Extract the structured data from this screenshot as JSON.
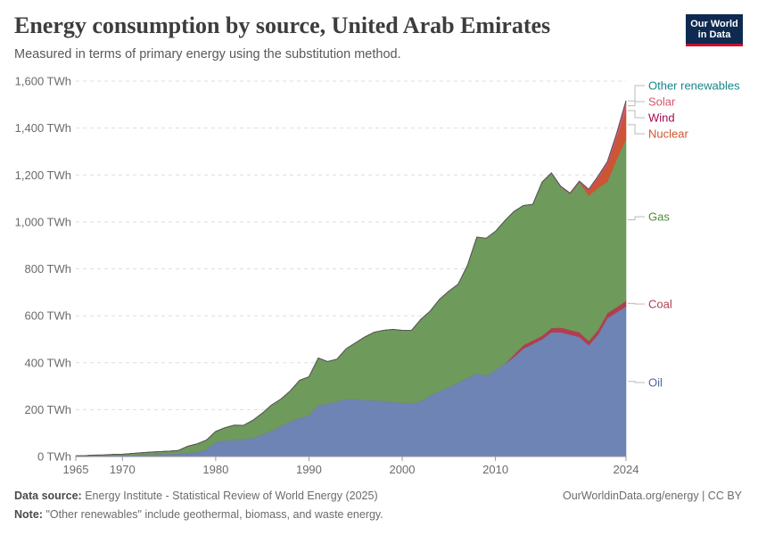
{
  "header": {
    "title": "Energy consumption by source, United Arab Emirates",
    "subtitle": "Measured in terms of primary energy using the substitution method."
  },
  "logo": {
    "line1": "Our World",
    "line2": "in Data",
    "bg_color": "#0e2a50",
    "accent_color": "#c8102e"
  },
  "footer": {
    "source_label": "Data source:",
    "source_text": "Energy Institute - Statistical Review of World Energy (2025)",
    "credit": "OurWorldinData.org/energy | CC BY",
    "note_label": "Note:",
    "note_text": "\"Other renewables\" include geothermal, biomass, and waste energy."
  },
  "chart_data": {
    "type": "area",
    "stacked": true,
    "x": [
      1965,
      1966,
      1967,
      1968,
      1969,
      1970,
      1971,
      1972,
      1973,
      1974,
      1975,
      1976,
      1977,
      1978,
      1979,
      1980,
      1981,
      1982,
      1983,
      1984,
      1985,
      1986,
      1987,
      1988,
      1989,
      1990,
      1991,
      1992,
      1993,
      1994,
      1995,
      1996,
      1997,
      1998,
      1999,
      2000,
      2001,
      2002,
      2003,
      2004,
      2005,
      2006,
      2007,
      2008,
      2009,
      2010,
      2011,
      2012,
      2013,
      2014,
      2015,
      2016,
      2017,
      2018,
      2019,
      2020,
      2021,
      2022,
      2023,
      2024
    ],
    "series": [
      {
        "name": "Oil",
        "color": "#6d84b4",
        "values": [
          2,
          3,
          4,
          4,
          5,
          6,
          7,
          8,
          9,
          10,
          11,
          12,
          16,
          20,
          30,
          62,
          68,
          72,
          73,
          80,
          95,
          110,
          130,
          150,
          165,
          175,
          220,
          225,
          235,
          245,
          245,
          240,
          240,
          238,
          232,
          230,
          228,
          235,
          260,
          280,
          295,
          315,
          335,
          355,
          345,
          370,
          395,
          425,
          460,
          480,
          500,
          530,
          530,
          520,
          510,
          475,
          520,
          590,
          615,
          640
        ]
      },
      {
        "name": "Coal",
        "color": "#b13e4e",
        "values": [
          0,
          0,
          0,
          0,
          0,
          0,
          0,
          0,
          0,
          0,
          0,
          0,
          0,
          0,
          0,
          0,
          0,
          0,
          0,
          0,
          0,
          0,
          0,
          0,
          0,
          0,
          0,
          0,
          0,
          0,
          0,
          0,
          0,
          0,
          0,
          0,
          0,
          0,
          0,
          0,
          0,
          0,
          0,
          0,
          0,
          0,
          0,
          10,
          15,
          15,
          15,
          18,
          20,
          20,
          20,
          18,
          20,
          22,
          22,
          24
        ]
      },
      {
        "name": "Gas",
        "color": "#6e9a5c",
        "values": [
          1,
          1,
          2,
          3,
          4,
          4,
          6,
          8,
          10,
          11,
          12,
          14,
          28,
          34,
          40,
          45,
          55,
          62,
          60,
          75,
          90,
          110,
          115,
          130,
          160,
          165,
          200,
          180,
          180,
          215,
          240,
          270,
          290,
          300,
          310,
          308,
          310,
          350,
          360,
          390,
          410,
          420,
          480,
          580,
          585,
          590,
          610,
          610,
          595,
          580,
          655,
          660,
          600,
          580,
          640,
          620,
          605,
          560,
          630,
          690
        ]
      },
      {
        "name": "Nuclear",
        "color": "#cc5533",
        "values": [
          0,
          0,
          0,
          0,
          0,
          0,
          0,
          0,
          0,
          0,
          0,
          0,
          0,
          0,
          0,
          0,
          0,
          0,
          0,
          0,
          0,
          0,
          0,
          0,
          0,
          0,
          0,
          0,
          0,
          0,
          0,
          0,
          0,
          0,
          0,
          0,
          0,
          0,
          0,
          0,
          0,
          0,
          0,
          0,
          0,
          0,
          0,
          0,
          0,
          0,
          0,
          0,
          0,
          0,
          0,
          20,
          40,
          70,
          85,
          120
        ]
      },
      {
        "name": "Wind",
        "color": "#a10a52",
        "values": [
          0,
          0,
          0,
          0,
          0,
          0,
          0,
          0,
          0,
          0,
          0,
          0,
          0,
          0,
          0,
          0,
          0,
          0,
          0,
          0,
          0,
          0,
          0,
          0,
          0,
          0,
          0,
          0,
          0,
          0,
          0,
          0,
          0,
          0,
          0,
          0,
          0,
          0,
          0,
          0,
          0,
          0,
          0,
          0,
          0,
          0,
          0,
          0,
          0,
          0,
          0,
          0,
          0,
          0,
          0,
          0,
          0,
          0,
          0,
          1
        ]
      },
      {
        "name": "Solar",
        "color": "#d6566c",
        "values": [
          0,
          0,
          0,
          0,
          0,
          0,
          0,
          0,
          0,
          0,
          0,
          0,
          0,
          0,
          0,
          0,
          0,
          0,
          0,
          0,
          0,
          0,
          0,
          0,
          0,
          0,
          0,
          0,
          0,
          0,
          0,
          0,
          0,
          0,
          0,
          0,
          0,
          0,
          0,
          0,
          0,
          0,
          0,
          0,
          0,
          0,
          0,
          0,
          0,
          0,
          0,
          1,
          2,
          3,
          4,
          6,
          10,
          15,
          25,
          40
        ]
      },
      {
        "name": "Other renewables",
        "color": "#18868a",
        "values": [
          0,
          0,
          0,
          0,
          0,
          0,
          0,
          0,
          0,
          0,
          0,
          0,
          0,
          0,
          0,
          0,
          0,
          0,
          0,
          0,
          0,
          0,
          0,
          0,
          0,
          0,
          0,
          0,
          0,
          0,
          0,
          0,
          0,
          0,
          0,
          0,
          0,
          0,
          0,
          0,
          0,
          0,
          0,
          0,
          0,
          0,
          0,
          0,
          0,
          0,
          0,
          0,
          0,
          0,
          0,
          0,
          0,
          0,
          1,
          2
        ]
      }
    ],
    "ylim": [
      0,
      1600
    ],
    "y_ticks": [
      0,
      200,
      400,
      600,
      800,
      1000,
      1200,
      1400,
      1600
    ],
    "y_tick_labels": [
      "0 TWh",
      "200 TWh",
      "400 TWh",
      "600 TWh",
      "800 TWh",
      "1,000 TWh",
      "1,200 TWh",
      "1,400 TWh",
      "1,600 TWh"
    ],
    "x_ticks": [
      1965,
      1970,
      1980,
      1990,
      2000,
      2010,
      2024
    ],
    "x_tick_labels": [
      "1965",
      "1970",
      "1980",
      "1990",
      "2000",
      "2010",
      "2024"
    ],
    "grid": true,
    "legend_position": "right",
    "legend_order": [
      "Other renewables",
      "Solar",
      "Wind",
      "Nuclear",
      "Gas",
      "Coal",
      "Oil"
    ]
  }
}
